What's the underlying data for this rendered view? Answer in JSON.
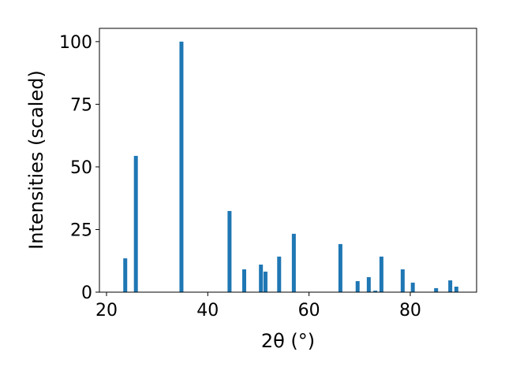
{
  "chart_data": {
    "type": "bar",
    "x_label": "2θ (°)",
    "y_label": "Intensities (scaled)",
    "x": [
      23.7,
      25.8,
      34.8,
      44.3,
      47.2,
      50.5,
      51.4,
      54.1,
      57.0,
      66.2,
      69.6,
      71.8,
      73.1,
      74.3,
      78.5,
      80.5,
      85.1,
      87.9,
      89.1
    ],
    "values": [
      13.5,
      54.4,
      100,
      32.4,
      9.1,
      11,
      8.2,
      14.2,
      23.3,
      19.2,
      4.4,
      6,
      0.6,
      14.2,
      9.1,
      3.8,
      1.6,
      4.7,
      2.2
    ],
    "color": "#1f77b4",
    "xlim": [
      18.6,
      93.1
    ],
    "ylim": [
      0,
      105.3
    ],
    "xticks": [
      20,
      40,
      60,
      80
    ],
    "yticks": [
      0,
      25,
      50,
      75,
      100
    ]
  }
}
